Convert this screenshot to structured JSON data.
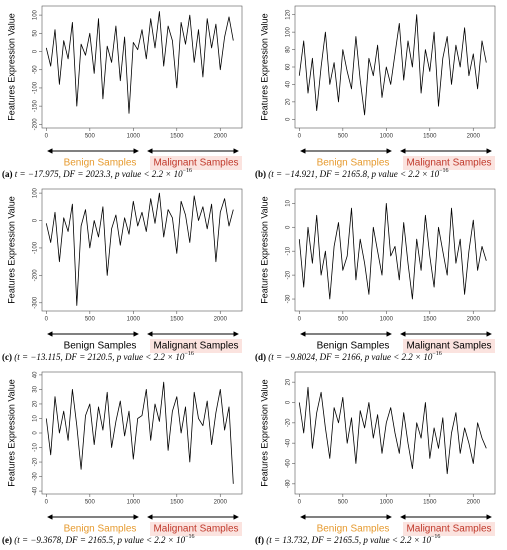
{
  "chart_data": [
    {
      "type": "line",
      "ylabel": "Features Expression Value",
      "caption_label": "(a)",
      "caption": " t = −17.975, DF = 2023.3, p value < 2.2 × 10",
      "caption_exponent": "−16",
      "annotations": [
        "Benign Samples",
        "Malignant Samples"
      ],
      "annotation_colors": [
        "#e69a2e",
        "#c0392b"
      ],
      "color": "#000000",
      "x": [
        0,
        50,
        100,
        150,
        200,
        250,
        300,
        350,
        400,
        450,
        500,
        550,
        600,
        650,
        700,
        750,
        800,
        850,
        900,
        950,
        1000,
        1050,
        1100,
        1150,
        1200,
        1250,
        1300,
        1350,
        1400,
        1450,
        1500,
        1550,
        1600,
        1650,
        1700,
        1750,
        1800,
        1850,
        1900,
        1950,
        2000,
        2050,
        2100,
        2150
      ],
      "values": [
        10,
        -40,
        60,
        -90,
        30,
        -20,
        80,
        -150,
        20,
        -10,
        50,
        -60,
        90,
        -130,
        15,
        -30,
        70,
        -80,
        40,
        -170,
        25,
        5,
        60,
        -20,
        90,
        10,
        110,
        -40,
        70,
        30,
        -100,
        80,
        20,
        100,
        -30,
        60,
        -70,
        90,
        10,
        75,
        -50,
        40,
        95,
        30
      ],
      "xlim": [
        -50,
        2250
      ],
      "ylim": [
        -210,
        125
      ],
      "xticks": [
        0,
        500,
        1000,
        1500,
        2000
      ],
      "yticks": [
        -200,
        -150,
        -100,
        -50,
        0,
        50,
        100
      ]
    },
    {
      "type": "line",
      "ylabel": "Features Expression Value",
      "caption_label": "(b)",
      "caption": " (t = −14.921, DF = 2165.8, p value < 2.2 × 10",
      "caption_exponent": "−16",
      "annotations": [
        "Benign Samples",
        "Malignant Samples"
      ],
      "annotation_colors": [
        "#e69a2e",
        "#c0392b"
      ],
      "color": "#000000",
      "x": [
        0,
        50,
        100,
        150,
        200,
        250,
        300,
        350,
        400,
        450,
        500,
        550,
        600,
        650,
        700,
        750,
        800,
        850,
        900,
        950,
        1000,
        1050,
        1100,
        1150,
        1200,
        1250,
        1300,
        1350,
        1400,
        1450,
        1500,
        1550,
        1600,
        1650,
        1700,
        1750,
        1800,
        1850,
        1900,
        1950,
        2000,
        2050,
        2100,
        2150
      ],
      "values": [
        50,
        90,
        30,
        70,
        10,
        60,
        100,
        40,
        65,
        20,
        80,
        55,
        35,
        95,
        45,
        5,
        70,
        50,
        85,
        25,
        60,
        40,
        75,
        110,
        45,
        90,
        60,
        120,
        30,
        80,
        55,
        100,
        15,
        70,
        95,
        40,
        85,
        60,
        105,
        50,
        75,
        35,
        90,
        65
      ],
      "xlim": [
        -50,
        2250
      ],
      "ylim": [
        -10,
        130
      ],
      "xticks": [
        0,
        500,
        1000,
        1500,
        2000
      ],
      "yticks": [
        0,
        20,
        40,
        60,
        80,
        100,
        120
      ]
    },
    {
      "type": "line",
      "ylabel": "Features Expression Value",
      "caption_label": "(c)",
      "caption": " (t = −13.115, DF = 2120.5, p value < 2.2 × 10",
      "caption_exponent": "−16",
      "annotations": [
        "Benign Samples",
        "Malignant Samples"
      ],
      "annotation_colors": [
        "#000000",
        "#000000"
      ],
      "color": "#000000",
      "x": [
        0,
        50,
        100,
        150,
        200,
        250,
        300,
        350,
        400,
        450,
        500,
        550,
        600,
        650,
        700,
        750,
        800,
        850,
        900,
        950,
        1000,
        1050,
        1100,
        1150,
        1200,
        1250,
        1300,
        1350,
        1400,
        1450,
        1500,
        1550,
        1600,
        1650,
        1700,
        1750,
        1800,
        1850,
        1900,
        1950,
        2000,
        2050,
        2100,
        2150
      ],
      "values": [
        -10,
        -80,
        30,
        -150,
        10,
        -40,
        60,
        -310,
        -20,
        40,
        -100,
        0,
        -60,
        50,
        -200,
        -30,
        20,
        -90,
        10,
        -50,
        70,
        -20,
        30,
        -40,
        80,
        -10,
        100,
        -60,
        40,
        10,
        -120,
        70,
        20,
        -80,
        90,
        0,
        50,
        -30,
        60,
        -150,
        30,
        80,
        -20,
        40
      ],
      "xlim": [
        -50,
        2250
      ],
      "ylim": [
        -330,
        115
      ],
      "xticks": [
        0,
        500,
        1000,
        1500,
        2000
      ],
      "yticks": [
        -300,
        -200,
        -100,
        0,
        100
      ]
    },
    {
      "type": "line",
      "ylabel": "Features Expression Value",
      "caption_label": "(d)",
      "caption": " (t = −9.8024, DF = 2166, p value < 2.2 × 10",
      "caption_exponent": "−16",
      "annotations": [
        "Benign Samples",
        "Malignant Samples"
      ],
      "annotation_colors": [
        "#000000",
        "#000000"
      ],
      "color": "#000000",
      "x": [
        0,
        50,
        100,
        150,
        200,
        250,
        300,
        350,
        400,
        450,
        500,
        550,
        600,
        650,
        700,
        750,
        800,
        850,
        900,
        950,
        1000,
        1050,
        1100,
        1150,
        1200,
        1250,
        1300,
        1350,
        1400,
        1450,
        1500,
        1550,
        1600,
        1650,
        1700,
        1750,
        1800,
        1850,
        1900,
        1950,
        2000,
        2050,
        2100,
        2150
      ],
      "values": [
        -5,
        -25,
        0,
        -15,
        5,
        -20,
        -10,
        -30,
        -8,
        2,
        -18,
        -12,
        8,
        -22,
        -5,
        -15,
        -28,
        0,
        -10,
        -20,
        10,
        -12,
        -8,
        -22,
        2,
        -15,
        -30,
        -5,
        -18,
        5,
        -12,
        -25,
        0,
        -10,
        -20,
        8,
        -15,
        -5,
        -28,
        -10,
        3,
        -18,
        -8,
        -14
      ],
      "xlim": [
        -50,
        2250
      ],
      "ylim": [
        -35,
        16
      ],
      "xticks": [
        0,
        500,
        1000,
        1500,
        2000
      ],
      "yticks": [
        -30,
        -20,
        -10,
        0,
        10
      ]
    },
    {
      "type": "line",
      "ylabel": "Features Expression Value",
      "caption_label": "(e)",
      "caption": " (t = −9.3678, DF = 2165.5, p value < 2.2 × 10",
      "caption_exponent": "−16",
      "annotations": [
        "Benign Samples",
        "Malignant Samples"
      ],
      "annotation_colors": [
        "#e69a2e",
        "#c0392b"
      ],
      "color": "#000000",
      "x": [
        0,
        50,
        100,
        150,
        200,
        250,
        300,
        350,
        400,
        450,
        500,
        550,
        600,
        650,
        700,
        750,
        800,
        850,
        900,
        950,
        1000,
        1050,
        1100,
        1150,
        1200,
        1250,
        1300,
        1350,
        1400,
        1450,
        1500,
        1550,
        1600,
        1650,
        1700,
        1750,
        1800,
        1850,
        1900,
        1950,
        2000,
        2050,
        2100,
        2150
      ],
      "values": [
        10,
        -15,
        25,
        0,
        15,
        -5,
        30,
        5,
        -25,
        12,
        20,
        -8,
        18,
        2,
        28,
        -10,
        8,
        22,
        -2,
        15,
        -18,
        10,
        12,
        30,
        -5,
        20,
        8,
        35,
        -12,
        15,
        25,
        0,
        18,
        -20,
        28,
        10,
        5,
        22,
        -8,
        14,
        30,
        2,
        18,
        -35
      ],
      "xlim": [
        -50,
        2250
      ],
      "ylim": [
        -42,
        42
      ],
      "xticks": [
        0,
        500,
        1000,
        1500,
        2000
      ],
      "yticks": [
        -40,
        -30,
        -20,
        -10,
        0,
        10,
        20,
        30,
        40
      ]
    },
    {
      "type": "line",
      "ylabel": "Features Expression Value",
      "caption_label": "(f)",
      "caption": " (t = 13.732, DF = 2165.5, p value < 2.2 × 10",
      "caption_exponent": "−16",
      "annotations": [
        "Benign Samples",
        "Malignant Samples"
      ],
      "annotation_colors": [
        "#e69a2e",
        "#c0392b"
      ],
      "color": "#000000",
      "x": [
        0,
        50,
        100,
        150,
        200,
        250,
        300,
        350,
        400,
        450,
        500,
        550,
        600,
        650,
        700,
        750,
        800,
        850,
        900,
        950,
        1000,
        1050,
        1100,
        1150,
        1200,
        1250,
        1300,
        1350,
        1400,
        1450,
        1500,
        1550,
        1600,
        1650,
        1700,
        1750,
        1800,
        1850,
        1900,
        1950,
        2000,
        2050,
        2100,
        2150
      ],
      "values": [
        0,
        -30,
        15,
        -45,
        -10,
        10,
        -25,
        -55,
        -5,
        -20,
        5,
        -40,
        -15,
        -60,
        -8,
        -25,
        0,
        -35,
        -12,
        -50,
        -20,
        -5,
        -30,
        -50,
        -10,
        -40,
        -65,
        -20,
        -35,
        0,
        -55,
        -25,
        -45,
        -15,
        -70,
        -30,
        -10,
        -50,
        -25,
        -40,
        -60,
        -20,
        -35,
        -45
      ],
      "xlim": [
        -50,
        2250
      ],
      "ylim": [
        -90,
        30
      ],
      "xticks": [
        0,
        500,
        1000,
        1500,
        2000
      ],
      "yticks": [
        -80,
        -60,
        -40,
        -20,
        0,
        20
      ]
    }
  ]
}
